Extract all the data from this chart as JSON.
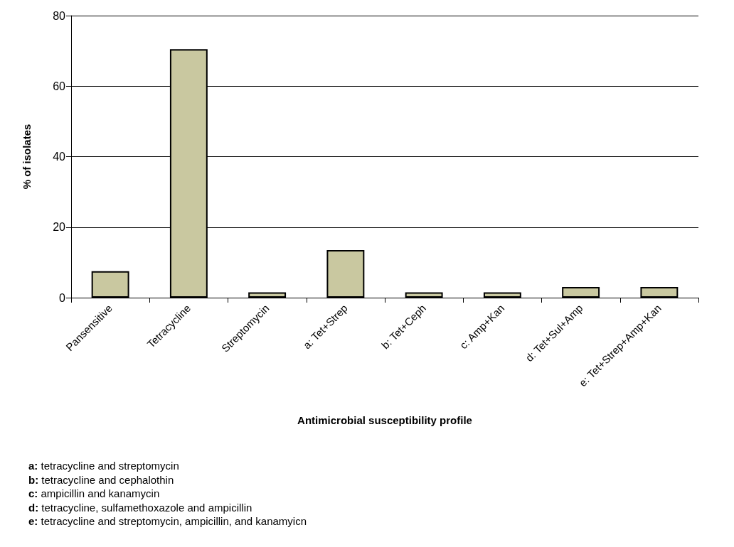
{
  "chart_data": {
    "type": "bar",
    "xlabel": "Antimicrobial susceptibility profile",
    "ylabel": "% of isolates",
    "categories": [
      "Pansensitive",
      "Tetracycline",
      "Streptomycin",
      "a: Tet+Strep",
      "b: Tet+Ceph",
      "c: Amp+Kan",
      "d: Tet+Sul+Amp",
      "e: Tet+Strep+Amp+Kan"
    ],
    "values": [
      7.5,
      70.5,
      1.5,
      13.5,
      1.5,
      1.5,
      3,
      3
    ],
    "color": "#c9c8a0",
    "ylim": [
      0,
      80
    ],
    "yticks": [
      0,
      20,
      40,
      60,
      80
    ],
    "grid": "y",
    "annotations": [
      "a: tetracycline and streptomycin",
      "b: tetracycline and cephalothin",
      "c: ampicillin and kanamycin",
      "d: tetracycline, sulfamethoxazole and ampicillin",
      "e: tetracycline and streptomycin, ampicillin, and kanamyicn"
    ]
  }
}
